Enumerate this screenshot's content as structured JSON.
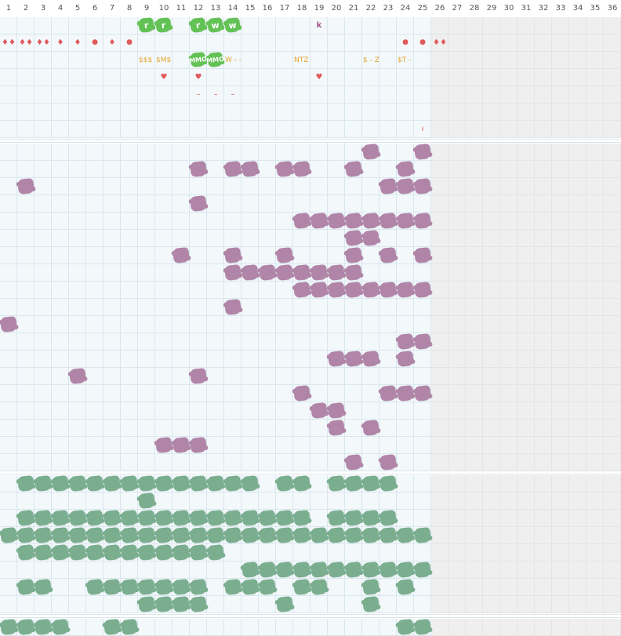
{
  "colors": {
    "purple_cell": "#b085a8",
    "teal_cell": "#7aae8f",
    "green_cell": "#63c255",
    "red_mark": "#e05a5a",
    "orange_text": "#e4a329",
    "purple_text": "#a0568a"
  },
  "columns": [
    "1",
    "2",
    "3",
    "4",
    "5",
    "6",
    "7",
    "8",
    "9",
    "10",
    "11",
    "12",
    "13",
    "14",
    "15",
    "16",
    "17",
    "18",
    "19",
    "20",
    "21",
    "22",
    "23",
    "24",
    "25",
    "26",
    "27",
    "28",
    "29",
    "30",
    "31",
    "32",
    "33",
    "34",
    "35",
    "36"
  ],
  "active_columns": 25,
  "top_section": {
    "green_cells": [
      {
        "row": 1,
        "col": 9,
        "label": "r"
      },
      {
        "row": 1,
        "col": 10,
        "label": "r"
      },
      {
        "row": 1,
        "col": 12,
        "label": "r"
      },
      {
        "row": 1,
        "col": 13,
        "label": "w"
      },
      {
        "row": 1,
        "col": 14,
        "label": "w"
      },
      {
        "row": 3,
        "col": 12,
        "label": "MMO"
      },
      {
        "row": 3,
        "col": 13,
        "label": "MMO"
      }
    ],
    "marks": [
      {
        "row": 1,
        "col": 19,
        "text": "k",
        "kind": "purple"
      },
      {
        "row": 2,
        "col": 1,
        "text": "♦♦",
        "kind": "red"
      },
      {
        "row": 2,
        "col": 2,
        "text": "♦♦",
        "kind": "red"
      },
      {
        "row": 2,
        "col": 3,
        "text": "♦♦",
        "kind": "red"
      },
      {
        "row": 2,
        "col": 4,
        "text": "♦",
        "kind": "red"
      },
      {
        "row": 2,
        "col": 5,
        "text": "♦",
        "kind": "red"
      },
      {
        "row": 2,
        "col": 6,
        "text": "●",
        "kind": "red"
      },
      {
        "row": 2,
        "col": 7,
        "text": "♦",
        "kind": "red"
      },
      {
        "row": 2,
        "col": 8,
        "text": "●",
        "kind": "red"
      },
      {
        "row": 2,
        "col": 24,
        "text": "●",
        "kind": "red"
      },
      {
        "row": 2,
        "col": 25,
        "text": "●",
        "kind": "red"
      },
      {
        "row": 2,
        "col": 26,
        "text": "♦♦",
        "kind": "red"
      },
      {
        "row": 4,
        "col": 10,
        "text": "♥",
        "kind": "red"
      },
      {
        "row": 4,
        "col": 12,
        "text": "♥",
        "kind": "red"
      },
      {
        "row": 4,
        "col": 19,
        "text": "♥",
        "kind": "red"
      },
      {
        "row": 5,
        "col": 12,
        "text": "–",
        "kind": "red"
      },
      {
        "row": 5,
        "col": 13,
        "text": "–",
        "kind": "red"
      },
      {
        "row": 5,
        "col": 14,
        "text": "–",
        "kind": "red"
      },
      {
        "row": 7,
        "col": 25,
        "text": "ı",
        "kind": "red"
      }
    ],
    "texts": [
      {
        "row": 3,
        "col": 9,
        "text": "$$$"
      },
      {
        "row": 3,
        "col": 10,
        "text": "$M$"
      },
      {
        "row": 3,
        "col": 14,
        "text": "W - -"
      },
      {
        "row": 3,
        "col": 18,
        "text": "NTZ"
      },
      {
        "row": 3,
        "col": 22,
        "text": "$ - Z"
      },
      {
        "row": 3,
        "col": 24,
        "text": "$T -"
      }
    ]
  },
  "purple_section": {
    "cells": [
      [
        1,
        22
      ],
      [
        1,
        25
      ],
      [
        2,
        12
      ],
      [
        2,
        14
      ],
      [
        2,
        15
      ],
      [
        2,
        17
      ],
      [
        2,
        18
      ],
      [
        2,
        21
      ],
      [
        2,
        24
      ],
      [
        3,
        2
      ],
      [
        3,
        23
      ],
      [
        3,
        24
      ],
      [
        3,
        25
      ],
      [
        4,
        12
      ],
      [
        5,
        18
      ],
      [
        5,
        19
      ],
      [
        5,
        20
      ],
      [
        5,
        21
      ],
      [
        5,
        22
      ],
      [
        5,
        23
      ],
      [
        5,
        24
      ],
      [
        5,
        25
      ],
      [
        6,
        21
      ],
      [
        6,
        22
      ],
      [
        7,
        11
      ],
      [
        7,
        14
      ],
      [
        7,
        17
      ],
      [
        7,
        21
      ],
      [
        7,
        23
      ],
      [
        7,
        25
      ],
      [
        8,
        14
      ],
      [
        8,
        15
      ],
      [
        8,
        16
      ],
      [
        8,
        17
      ],
      [
        8,
        18
      ],
      [
        8,
        19
      ],
      [
        8,
        20
      ],
      [
        8,
        21
      ],
      [
        9,
        18
      ],
      [
        9,
        19
      ],
      [
        9,
        20
      ],
      [
        9,
        21
      ],
      [
        9,
        22
      ],
      [
        9,
        23
      ],
      [
        9,
        24
      ],
      [
        9,
        25
      ],
      [
        10,
        14
      ],
      [
        11,
        1
      ],
      [
        12,
        24
      ],
      [
        12,
        25
      ],
      [
        13,
        20
      ],
      [
        13,
        21
      ],
      [
        13,
        22
      ],
      [
        13,
        24
      ],
      [
        14,
        5
      ],
      [
        14,
        12
      ],
      [
        15,
        18
      ],
      [
        15,
        23
      ],
      [
        15,
        24
      ],
      [
        15,
        25
      ],
      [
        16,
        19
      ],
      [
        16,
        20
      ],
      [
        17,
        20
      ],
      [
        17,
        22
      ],
      [
        18,
        10
      ],
      [
        18,
        11
      ],
      [
        18,
        12
      ],
      [
        19,
        21
      ],
      [
        19,
        23
      ]
    ]
  },
  "teal_section": {
    "cells": [
      [
        1,
        2
      ],
      [
        1,
        3
      ],
      [
        1,
        4
      ],
      [
        1,
        5
      ],
      [
        1,
        6
      ],
      [
        1,
        7
      ],
      [
        1,
        8
      ],
      [
        1,
        9
      ],
      [
        1,
        10
      ],
      [
        1,
        11
      ],
      [
        1,
        12
      ],
      [
        1,
        13
      ],
      [
        1,
        14
      ],
      [
        1,
        15
      ],
      [
        1,
        17
      ],
      [
        1,
        18
      ],
      [
        1,
        20
      ],
      [
        1,
        21
      ],
      [
        1,
        22
      ],
      [
        1,
        23
      ],
      [
        2,
        9
      ],
      [
        3,
        2
      ],
      [
        3,
        3
      ],
      [
        3,
        4
      ],
      [
        3,
        5
      ],
      [
        3,
        6
      ],
      [
        3,
        7
      ],
      [
        3,
        8
      ],
      [
        3,
        9
      ],
      [
        3,
        10
      ],
      [
        3,
        11
      ],
      [
        3,
        12
      ],
      [
        3,
        13
      ],
      [
        3,
        14
      ],
      [
        3,
        15
      ],
      [
        3,
        16
      ],
      [
        3,
        17
      ],
      [
        3,
        18
      ],
      [
        3,
        20
      ],
      [
        3,
        21
      ],
      [
        3,
        22
      ],
      [
        3,
        23
      ],
      [
        4,
        1
      ],
      [
        4,
        2
      ],
      [
        4,
        3
      ],
      [
        4,
        4
      ],
      [
        4,
        5
      ],
      [
        4,
        6
      ],
      [
        4,
        7
      ],
      [
        4,
        8
      ],
      [
        4,
        9
      ],
      [
        4,
        10
      ],
      [
        4,
        11
      ],
      [
        4,
        12
      ],
      [
        4,
        13
      ],
      [
        4,
        14
      ],
      [
        4,
        15
      ],
      [
        4,
        16
      ],
      [
        4,
        17
      ],
      [
        4,
        18
      ],
      [
        4,
        19
      ],
      [
        4,
        20
      ],
      [
        4,
        21
      ],
      [
        4,
        22
      ],
      [
        4,
        23
      ],
      [
        4,
        24
      ],
      [
        4,
        25
      ],
      [
        5,
        2
      ],
      [
        5,
        3
      ],
      [
        5,
        4
      ],
      [
        5,
        5
      ],
      [
        5,
        6
      ],
      [
        5,
        7
      ],
      [
        5,
        8
      ],
      [
        5,
        9
      ],
      [
        5,
        10
      ],
      [
        5,
        11
      ],
      [
        5,
        12
      ],
      [
        5,
        13
      ],
      [
        6,
        15
      ],
      [
        6,
        16
      ],
      [
        6,
        17
      ],
      [
        6,
        18
      ],
      [
        6,
        19
      ],
      [
        6,
        20
      ],
      [
        6,
        21
      ],
      [
        6,
        22
      ],
      [
        6,
        23
      ],
      [
        6,
        24
      ],
      [
        6,
        25
      ],
      [
        7,
        2
      ],
      [
        7,
        3
      ],
      [
        7,
        6
      ],
      [
        7,
        7
      ],
      [
        7,
        8
      ],
      [
        7,
        9
      ],
      [
        7,
        10
      ],
      [
        7,
        11
      ],
      [
        7,
        12
      ],
      [
        7,
        14
      ],
      [
        7,
        15
      ],
      [
        7,
        16
      ],
      [
        7,
        18
      ],
      [
        7,
        19
      ],
      [
        7,
        22
      ],
      [
        7,
        24
      ],
      [
        8,
        9
      ],
      [
        8,
        10
      ],
      [
        8,
        11
      ],
      [
        8,
        12
      ],
      [
        8,
        17
      ],
      [
        8,
        22
      ]
    ]
  },
  "bottom_section": {
    "cells": [
      [
        1,
        1
      ],
      [
        1,
        2
      ],
      [
        1,
        3
      ],
      [
        1,
        4
      ],
      [
        1,
        7
      ],
      [
        1,
        8
      ],
      [
        1,
        24
      ],
      [
        1,
        25
      ]
    ]
  }
}
